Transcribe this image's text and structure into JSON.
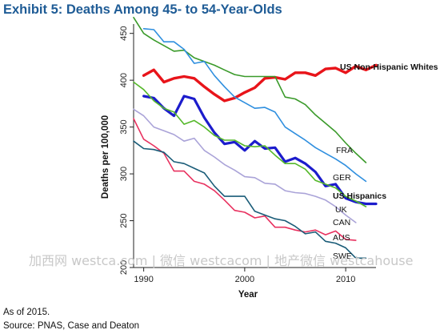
{
  "chart_data": {
    "type": "line",
    "title": "Exhibit 5: Deaths Among 45- to 54-Year-Olds",
    "xlabel": "Year",
    "ylabel": "Deaths per 100,000",
    "xlim": [
      1989,
      2013
    ],
    "ylim": [
      200,
      460
    ],
    "xticks": [
      1990,
      2000,
      2010
    ],
    "yticks": [
      200,
      250,
      300,
      350,
      400,
      450
    ],
    "grid": false,
    "legend": "direct labels at line ends",
    "series": [
      {
        "name": "US Non-Hispanic Whites",
        "color": "#e8141a",
        "width": 3.4,
        "bold": true,
        "x": [
          1990,
          1991,
          1992,
          1993,
          1994,
          1995,
          1996,
          1997,
          1998,
          1999,
          2000,
          2001,
          2002,
          2003,
          2004,
          2005,
          2006,
          2007,
          2008,
          2009,
          2010,
          2011,
          2012,
          2013
        ],
        "y": [
          405,
          411,
          398,
          402,
          404,
          402,
          393,
          385,
          378,
          381,
          387,
          392,
          402,
          403,
          401,
          408,
          408,
          405,
          412,
          413,
          408,
          415,
          411,
          416
        ]
      },
      {
        "name": "FRA",
        "color": "#3a9a2a",
        "width": 1.6,
        "bold": false,
        "x": [
          1989,
          1990,
          1991,
          1992,
          1993,
          1994,
          1995,
          1996,
          1997,
          1998,
          1999,
          2000,
          2001,
          2002,
          2003,
          2004,
          2005,
          2006,
          2007,
          2008,
          2009,
          2010,
          2011,
          2012
        ],
        "y": [
          467,
          450,
          443,
          437,
          431,
          432,
          424,
          420,
          416,
          411,
          406,
          404,
          404,
          404,
          404,
          382,
          380,
          374,
          363,
          354,
          345,
          333,
          322,
          312
        ]
      },
      {
        "name": "GER",
        "color": "#2f8fdf",
        "width": 1.6,
        "bold": false,
        "x": [
          1990,
          1991,
          1992,
          1993,
          1994,
          1995,
          1996,
          1997,
          1998,
          1999,
          2000,
          2001,
          2002,
          2003,
          2004,
          2005,
          2006,
          2007,
          2008,
          2009,
          2010,
          2011,
          2012
        ],
        "y": [
          455,
          454,
          441,
          441,
          433,
          418,
          420,
          405,
          393,
          382,
          376,
          370,
          371,
          366,
          350,
          343,
          336,
          328,
          322,
          316,
          309,
          300,
          292
        ]
      },
      {
        "name": "US Hispanics",
        "color": "#1c1ccc",
        "width": 3.2,
        "bold": true,
        "x": [
          1990,
          1991,
          1992,
          1993,
          1994,
          1995,
          1996,
          1997,
          1998,
          1999,
          2000,
          2001,
          2002,
          2003,
          2004,
          2005,
          2006,
          2007,
          2008,
          2009,
          2010,
          2011,
          2012,
          2013
        ],
        "y": [
          383,
          381,
          370,
          362,
          383,
          380,
          360,
          344,
          332,
          334,
          325,
          335,
          327,
          328,
          313,
          317,
          311,
          302,
          287,
          289,
          274,
          270,
          268,
          268
        ]
      },
      {
        "name": "UK",
        "color": "#55b82a",
        "width": 1.6,
        "bold": false,
        "x": [
          1989,
          1990,
          1991,
          1992,
          1993,
          1994,
          1995,
          1996,
          1997,
          1998,
          1999,
          2000,
          2001,
          2002,
          2003,
          2004,
          2005,
          2006,
          2007,
          2008,
          2009,
          2010,
          2011,
          2012
        ],
        "y": [
          398,
          390,
          378,
          370,
          366,
          353,
          357,
          350,
          341,
          336,
          336,
          330,
          329,
          330,
          320,
          311,
          311,
          305,
          293,
          289,
          285,
          276,
          271,
          265
        ]
      },
      {
        "name": "CAN",
        "color": "#aaa3d8",
        "width": 1.6,
        "bold": false,
        "x": [
          1989,
          1990,
          1991,
          1992,
          1993,
          1994,
          1995,
          1996,
          1997,
          1998,
          1999,
          2000,
          2001,
          2002,
          2003,
          2004,
          2005,
          2006,
          2007,
          2008,
          2009,
          2010,
          2011
        ],
        "y": [
          369,
          362,
          350,
          346,
          342,
          335,
          338,
          325,
          318,
          310,
          304,
          297,
          296,
          290,
          289,
          282,
          280,
          279,
          276,
          272,
          265,
          256,
          248
        ]
      },
      {
        "name": "AUS",
        "color": "#e8315f",
        "width": 1.6,
        "bold": false,
        "x": [
          1989,
          1990,
          1991,
          1992,
          1993,
          1994,
          1995,
          1996,
          1997,
          1998,
          1999,
          2000,
          2001,
          2002,
          2003,
          2004,
          2005,
          2006,
          2007,
          2008,
          2009,
          2010,
          2011
        ],
        "y": [
          359,
          337,
          330,
          322,
          303,
          303,
          292,
          289,
          282,
          272,
          261,
          259,
          253,
          255,
          243,
          243,
          240,
          238,
          240,
          235,
          239,
          230,
          229
        ]
      },
      {
        "name": "SWE",
        "color": "#1a5c78",
        "width": 1.6,
        "bold": false,
        "x": [
          1989,
          1990,
          1991,
          1992,
          1993,
          1994,
          1995,
          1996,
          1997,
          1998,
          1999,
          2000,
          2001,
          2002,
          2003,
          2004,
          2005,
          2006,
          2007,
          2008,
          2009,
          2010,
          2011,
          2012
        ],
        "y": [
          335,
          327,
          326,
          323,
          313,
          311,
          306,
          301,
          287,
          276,
          276,
          276,
          260,
          256,
          252,
          250,
          244,
          236,
          238,
          228,
          226,
          221,
          210,
          210
        ]
      }
    ]
  },
  "watermark": "加西网 westca.com | 微信 westcacom | 地产微信 westcahouse",
  "footnote": {
    "line1": "As of 2015.",
    "line2": "Source:  PNAS, Case and Deaton"
  }
}
